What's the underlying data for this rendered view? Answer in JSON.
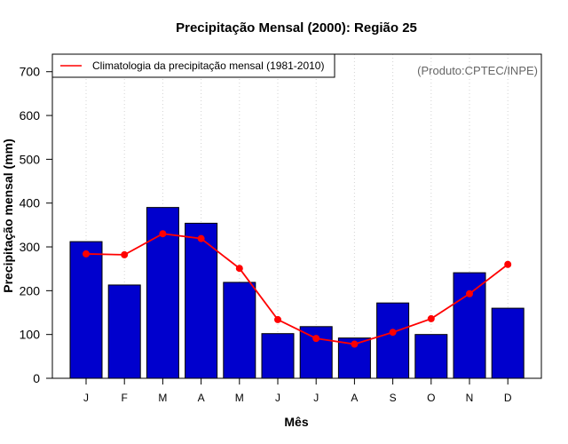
{
  "chart_data": {
    "type": "bar",
    "title": "Precipitação Mensal (2000): Região 25",
    "xlabel": "Mês",
    "ylabel": "Precipitação mensal (mm)",
    "ylim": [
      0,
      740
    ],
    "yticks": [
      0,
      100,
      200,
      300,
      400,
      500,
      600,
      700
    ],
    "categories": [
      "J",
      "F",
      "M",
      "A",
      "M",
      "J",
      "J",
      "A",
      "S",
      "O",
      "N",
      "D"
    ],
    "series": [
      {
        "name": "Precipitação mensal (2000)",
        "type": "bar",
        "color": "#0000cd",
        "values": [
          312,
          213,
          390,
          354,
          219,
          102,
          118,
          92,
          172,
          100,
          241,
          160
        ]
      },
      {
        "name": "Climatologia da precipitação mensal (1981-2010)",
        "type": "line",
        "color": "#ff0000",
        "values": [
          284,
          282,
          330,
          319,
          251,
          134,
          91,
          78,
          105,
          136,
          193,
          260
        ]
      }
    ],
    "legend": {
      "entries": [
        "Climatologia da precipitação mensal (1981-2010)"
      ],
      "position": "top-left"
    },
    "annotation": "(Produto:CPTEC/INPE)",
    "grid": "vertical-dotted"
  }
}
